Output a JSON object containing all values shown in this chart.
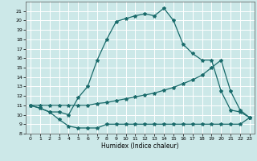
{
  "xlabel": "Humidex (Indice chaleur)",
  "xlim": [
    -0.5,
    23.5
  ],
  "ylim": [
    8,
    22
  ],
  "yticks": [
    8,
    9,
    10,
    11,
    12,
    13,
    14,
    15,
    16,
    17,
    18,
    19,
    20,
    21
  ],
  "xticks": [
    0,
    1,
    2,
    3,
    4,
    5,
    6,
    7,
    8,
    9,
    10,
    11,
    12,
    13,
    14,
    15,
    16,
    17,
    18,
    19,
    20,
    21,
    22,
    23
  ],
  "bg_color": "#cce8e8",
  "grid_color": "#b0d8d8",
  "line_color": "#1a6b6b",
  "line1_x": [
    0,
    1,
    2,
    3,
    4,
    5,
    6,
    7,
    8,
    9,
    10,
    11,
    12,
    13,
    14,
    15,
    16,
    17,
    18,
    19,
    20,
    21,
    22,
    23
  ],
  "line1_y": [
    11.0,
    10.7,
    10.3,
    9.5,
    8.8,
    8.6,
    8.6,
    8.6,
    9.0,
    9.0,
    9.0,
    9.0,
    9.0,
    9.0,
    9.0,
    9.0,
    9.0,
    9.0,
    9.0,
    9.0,
    9.0,
    9.0,
    9.0,
    9.7
  ],
  "line2_x": [
    0,
    1,
    2,
    3,
    4,
    5,
    6,
    7,
    8,
    9,
    10,
    11,
    12,
    13,
    14,
    15,
    16,
    17,
    18,
    19,
    20,
    21,
    22,
    23
  ],
  "line2_y": [
    11.0,
    11.0,
    11.0,
    11.0,
    11.0,
    11.0,
    11.0,
    11.2,
    11.3,
    11.5,
    11.7,
    11.9,
    12.1,
    12.3,
    12.6,
    12.9,
    13.3,
    13.7,
    14.2,
    15.0,
    15.8,
    12.5,
    10.5,
    9.7
  ],
  "line3_x": [
    0,
    1,
    2,
    3,
    4,
    5,
    6,
    7,
    8,
    9,
    10,
    11,
    12,
    13,
    14,
    15,
    16,
    17,
    18,
    19,
    20,
    21,
    22,
    23
  ],
  "line3_y": [
    11.0,
    10.7,
    10.3,
    10.3,
    10.0,
    11.8,
    13.0,
    15.8,
    18.0,
    19.9,
    20.2,
    20.5,
    20.7,
    20.5,
    21.3,
    20.0,
    17.5,
    16.5,
    15.8,
    15.8,
    12.5,
    10.5,
    10.3,
    9.7
  ],
  "markersize": 3.0,
  "linewidth": 0.9
}
